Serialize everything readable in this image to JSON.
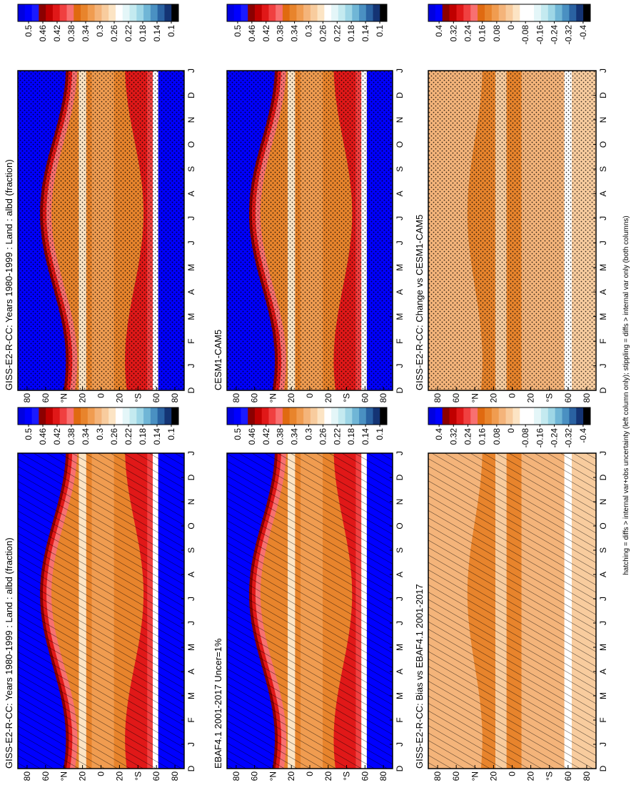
{
  "chart_data": [
    {
      "type": "heatmap",
      "field": "absolute",
      "stippling": "hatch",
      "title": "GISS-E2-R-CC: Years 1980-1999 : Land : albd (fraction)",
      "categories": [
        "D",
        "J",
        "F",
        "M",
        "A",
        "M",
        "J",
        "J",
        "A",
        "S",
        "O",
        "N",
        "D",
        "J"
      ],
      "ylim": [
        90,
        -90
      ],
      "yticks": [
        80,
        60,
        {
          "value": 40,
          "label": "°N"
        },
        20,
        0,
        {
          "value": -20,
          "label": "20"
        },
        {
          "value": -40,
          "label": "°S"
        },
        {
          "value": -60,
          "label": "60"
        },
        {
          "value": -80,
          "label": "80"
        }
      ],
      "colorbar": {
        "clim": [
          0.53,
          0.08
        ],
        "ticks": [
          0.5,
          0.46,
          0.42,
          0.38,
          0.34,
          0.3,
          0.26,
          0.22,
          0.18,
          0.14,
          0.1
        ],
        "colors": [
          "#0000e0",
          "#0000ff",
          "#1a1aff",
          "#8b0000",
          "#c00000",
          "#e01818",
          "#f04040",
          "#f87070",
          "#e06a10",
          "#e8842c",
          "#f09c50",
          "#f4b47a",
          "#f8cc9e",
          "#fce4c4",
          "#ffffff",
          "#e4f6f8",
          "#c4eaf0",
          "#9ed6e6",
          "#70b6d6",
          "#4a90c2",
          "#2a62a2",
          "#143474",
          "#000000"
        ]
      }
    },
    {
      "type": "heatmap",
      "field": "absolute",
      "stippling": "stipple",
      "title": "GISS-E2-R-CC: Years 1980-1999 : Land : albd (fraction)",
      "categories": [
        "D",
        "J",
        "F",
        "M",
        "A",
        "M",
        "J",
        "J",
        "A",
        "S",
        "O",
        "N",
        "D",
        "J"
      ],
      "ylim": [
        90,
        -90
      ],
      "yticks": [
        80,
        60,
        {
          "value": 40,
          "label": "°N"
        },
        20,
        0,
        {
          "value": -20,
          "label": "20"
        },
        {
          "value": -40,
          "label": "°S"
        },
        {
          "value": -60,
          "label": "60"
        },
        {
          "value": -80,
          "label": "80"
        }
      ],
      "colorbar": {
        "clim": [
          0.53,
          0.08
        ],
        "ticks": [
          0.5,
          0.46,
          0.42,
          0.38,
          0.34,
          0.3,
          0.26,
          0.22,
          0.18,
          0.14,
          0.1
        ],
        "colors": [
          "#0000e0",
          "#0000ff",
          "#1a1aff",
          "#8b0000",
          "#c00000",
          "#e01818",
          "#f04040",
          "#f87070",
          "#e06a10",
          "#e8842c",
          "#f09c50",
          "#f4b47a",
          "#f8cc9e",
          "#fce4c4",
          "#ffffff",
          "#e4f6f8",
          "#c4eaf0",
          "#9ed6e6",
          "#70b6d6",
          "#4a90c2",
          "#2a62a2",
          "#143474",
          "#000000"
        ]
      }
    },
    {
      "type": "heatmap",
      "field": "absolute",
      "stippling": "hatch",
      "title": "EBAF4.1 2001-2017 Uncer=1%",
      "categories": [
        "D",
        "J",
        "F",
        "M",
        "A",
        "M",
        "J",
        "J",
        "A",
        "S",
        "O",
        "N",
        "D",
        "J"
      ],
      "ylim": [
        90,
        -90
      ],
      "yticks": [
        80,
        60,
        {
          "value": 40,
          "label": "°N"
        },
        20,
        0,
        {
          "value": -20,
          "label": "20"
        },
        {
          "value": -40,
          "label": "°S"
        },
        {
          "value": -60,
          "label": "60"
        },
        {
          "value": -80,
          "label": "80"
        }
      ],
      "colorbar": {
        "clim": [
          0.53,
          0.08
        ],
        "ticks": [
          0.5,
          0.46,
          0.42,
          0.38,
          0.34,
          0.3,
          0.26,
          0.22,
          0.18,
          0.14,
          0.1
        ],
        "colors": [
          "#0000e0",
          "#0000ff",
          "#1a1aff",
          "#8b0000",
          "#c00000",
          "#e01818",
          "#f04040",
          "#f87070",
          "#e06a10",
          "#e8842c",
          "#f09c50",
          "#f4b47a",
          "#f8cc9e",
          "#fce4c4",
          "#ffffff",
          "#e4f6f8",
          "#c4eaf0",
          "#9ed6e6",
          "#70b6d6",
          "#4a90c2",
          "#2a62a2",
          "#143474",
          "#000000"
        ]
      }
    },
    {
      "type": "heatmap",
      "field": "absolute",
      "stippling": "stipple",
      "title": "CESM1-CAM5",
      "categories": [
        "D",
        "J",
        "F",
        "M",
        "A",
        "M",
        "J",
        "J",
        "A",
        "S",
        "O",
        "N",
        "D",
        "J"
      ],
      "ylim": [
        90,
        -90
      ],
      "yticks": [
        80,
        60,
        {
          "value": 40,
          "label": "°N"
        },
        20,
        0,
        {
          "value": -20,
          "label": "20"
        },
        {
          "value": -40,
          "label": "°S"
        },
        {
          "value": -60,
          "label": "60"
        },
        {
          "value": -80,
          "label": "80"
        }
      ],
      "colorbar": {
        "clim": [
          0.53,
          0.08
        ],
        "ticks": [
          0.5,
          0.46,
          0.42,
          0.38,
          0.34,
          0.3,
          0.26,
          0.22,
          0.18,
          0.14,
          0.1
        ],
        "colors": [
          "#0000e0",
          "#0000ff",
          "#1a1aff",
          "#8b0000",
          "#c00000",
          "#e01818",
          "#f04040",
          "#f87070",
          "#e06a10",
          "#e8842c",
          "#f09c50",
          "#f4b47a",
          "#f8cc9e",
          "#fce4c4",
          "#ffffff",
          "#e4f6f8",
          "#c4eaf0",
          "#9ed6e6",
          "#70b6d6",
          "#4a90c2",
          "#2a62a2",
          "#143474",
          "#000000"
        ]
      }
    },
    {
      "type": "heatmap",
      "field": "difference",
      "stippling": "hatch",
      "title": "GISS-E2-R-CC: Bias vs EBAF4.1 2001-2017",
      "categories": [
        "D",
        "J",
        "F",
        "M",
        "A",
        "M",
        "J",
        "J",
        "A",
        "S",
        "O",
        "N",
        "D",
        "J"
      ],
      "ylim": [
        90,
        -90
      ],
      "yticks": [
        80,
        60,
        {
          "value": 40,
          "label": "°N"
        },
        20,
        0,
        {
          "value": -20,
          "label": "20"
        },
        {
          "value": -40,
          "label": "°S"
        },
        {
          "value": -60,
          "label": "60"
        },
        {
          "value": -80,
          "label": "80"
        }
      ],
      "colorbar": {
        "clim": [
          0.46,
          -0.44
        ],
        "ticks": [
          0.4,
          0.32,
          0.24,
          0.16,
          0.08,
          0,
          -0.08,
          -0.16,
          -0.24,
          -0.32,
          -0.4
        ],
        "colors": [
          "#0000e0",
          "#0000ff",
          "#8b0000",
          "#c00000",
          "#e01818",
          "#f04040",
          "#f87070",
          "#e06a10",
          "#e8842c",
          "#f09c50",
          "#f4b47a",
          "#f8cc9e",
          "#fce4c4",
          "#ffffff",
          "#ffffff",
          "#e4f6f8",
          "#c4eaf0",
          "#9ed6e6",
          "#70b6d6",
          "#4a90c2",
          "#2a62a2",
          "#143474",
          "#000000"
        ]
      }
    },
    {
      "type": "heatmap",
      "field": "difference",
      "stippling": "stipple",
      "title": "GISS-E2-R-CC: Change vs CESM1-CAM5",
      "categories": [
        "D",
        "J",
        "F",
        "M",
        "A",
        "M",
        "J",
        "J",
        "A",
        "S",
        "O",
        "N",
        "D",
        "J"
      ],
      "ylim": [
        90,
        -90
      ],
      "yticks": [
        80,
        60,
        {
          "value": 40,
          "label": "°N"
        },
        20,
        0,
        {
          "value": -20,
          "label": "20"
        },
        {
          "value": -40,
          "label": "°S"
        },
        {
          "value": -60,
          "label": "60"
        },
        {
          "value": -80,
          "label": "80"
        }
      ],
      "colorbar": {
        "clim": [
          0.46,
          -0.44
        ],
        "ticks": [
          0.4,
          0.32,
          0.24,
          0.16,
          0.08,
          0,
          -0.08,
          -0.16,
          -0.24,
          -0.32,
          -0.4
        ],
        "colors": [
          "#0000e0",
          "#0000ff",
          "#8b0000",
          "#c00000",
          "#e01818",
          "#f04040",
          "#f87070",
          "#e06a10",
          "#e8842c",
          "#f09c50",
          "#f4b47a",
          "#f8cc9e",
          "#fce4c4",
          "#ffffff",
          "#ffffff",
          "#e4f6f8",
          "#c4eaf0",
          "#9ed6e6",
          "#70b6d6",
          "#4a90c2",
          "#2a62a2",
          "#143474",
          "#000000"
        ]
      }
    }
  ],
  "footnote": "hatching = diffs > internal var+obs uncertainty (left column only); stippling = diffs > internal var only (both columns)"
}
